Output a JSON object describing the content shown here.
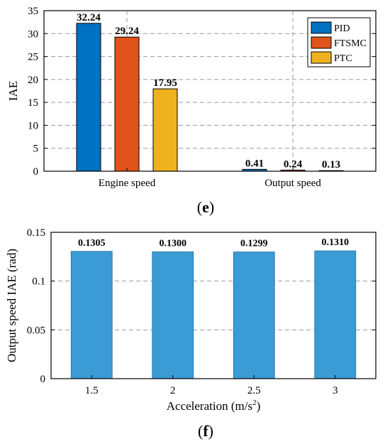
{
  "chart_data": [
    {
      "type": "bar",
      "panel_caption": "e",
      "categories": [
        "Engine speed",
        "Output speed"
      ],
      "series": [
        {
          "name": "PID",
          "color": "#0070c0",
          "values": [
            32.24,
            0.41
          ]
        },
        {
          "name": "FTSMC",
          "color": "#e0531a",
          "values": [
            29.24,
            0.24
          ]
        },
        {
          "name": "PTC",
          "color": "#efb21f",
          "values": [
            17.95,
            0.13
          ]
        }
      ],
      "data_labels": [
        [
          "32.24",
          "0.41"
        ],
        [
          "29.24",
          "0.24"
        ],
        [
          "17.95",
          "0.13"
        ]
      ],
      "title": "",
      "xlabel": "",
      "ylabel": "IAE",
      "ylim": [
        0,
        35
      ],
      "yticks": [
        "0",
        "5",
        "10",
        "15",
        "20",
        "25",
        "30",
        "35"
      ],
      "grid": "on (dashed)",
      "legend_position": "top-right"
    },
    {
      "type": "bar",
      "panel_caption": "f",
      "categories": [
        "1.5",
        "2",
        "2.5",
        "3"
      ],
      "values": [
        0.1305,
        0.13,
        0.1299,
        0.131
      ],
      "data_labels": [
        "0.1305",
        "0.1300",
        "0.1299",
        "0.1310"
      ],
      "color": "#3a9bd5",
      "title": "",
      "xlabel": "Acceleration (m/s",
      "xlabel_superscript": "2",
      "xlabel_suffix": ")",
      "ylabel": "Output speed IAE (rad)",
      "ylim": [
        0,
        0.15
      ],
      "yticks": [
        "0",
        "0.05",
        "0.1",
        "0.15"
      ],
      "grid": "on (dashed)"
    }
  ]
}
